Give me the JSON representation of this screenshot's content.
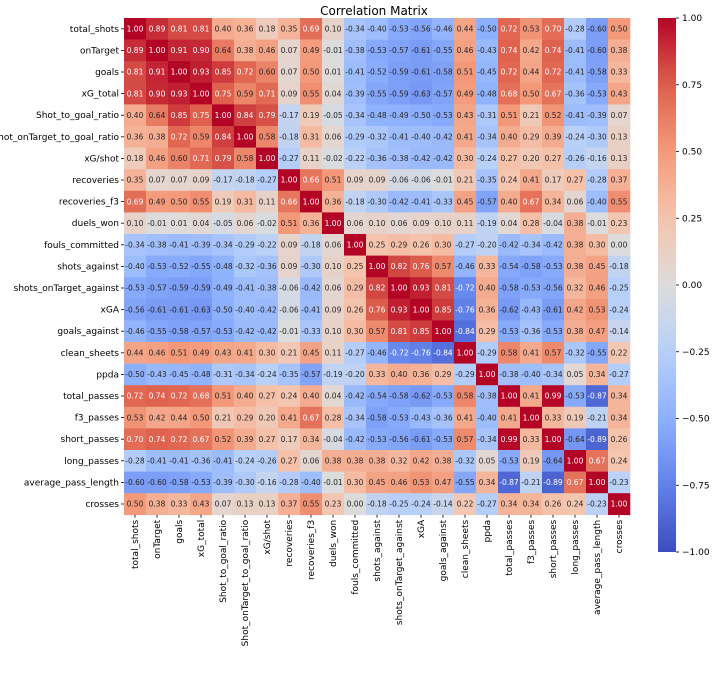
{
  "chart_data": {
    "type": "heatmap",
    "title": "Correlation Matrix",
    "labels": [
      "total_shots",
      "onTarget",
      "goals",
      "xG_total",
      "Shot_to_goal_ratio",
      "Shot_onTarget_to_goal_ratio",
      "xG/shot",
      "recoveries",
      "recoveries_f3",
      "duels_won",
      "fouls_committed",
      "shots_against",
      "shots_onTarget_against",
      "xGA",
      "goals_against",
      "clean_sheets",
      "ppda",
      "total_passes",
      "f3_passes",
      "short_passes",
      "long_passes",
      "average_pass_length",
      "crosses"
    ],
    "values": [
      [
        1.0,
        0.89,
        0.81,
        0.81,
        0.4,
        0.36,
        0.18,
        0.35,
        0.69,
        0.1,
        -0.34,
        -0.4,
        -0.53,
        -0.56,
        -0.46,
        0.44,
        -0.5,
        0.72,
        0.53,
        0.7,
        -0.28,
        -0.6,
        0.5
      ],
      [
        0.89,
        1.0,
        0.91,
        0.9,
        0.64,
        0.38,
        0.46,
        0.07,
        0.49,
        -0.01,
        -0.38,
        -0.53,
        -0.57,
        -0.61,
        -0.55,
        0.46,
        -0.43,
        0.74,
        0.42,
        0.74,
        -0.41,
        -0.6,
        0.38
      ],
      [
        0.81,
        0.91,
        1.0,
        0.93,
        0.85,
        0.72,
        0.6,
        0.07,
        0.5,
        0.01,
        -0.41,
        -0.52,
        -0.59,
        -0.61,
        -0.58,
        0.51,
        -0.45,
        0.72,
        0.44,
        0.72,
        -0.41,
        -0.58,
        0.33
      ],
      [
        0.81,
        0.9,
        0.93,
        1.0,
        0.75,
        0.59,
        0.71,
        0.09,
        0.55,
        0.04,
        -0.39,
        -0.55,
        -0.59,
        -0.63,
        -0.57,
        0.49,
        -0.48,
        0.68,
        0.5,
        0.67,
        -0.36,
        -0.53,
        0.43
      ],
      [
        0.4,
        0.64,
        0.85,
        0.75,
        1.0,
        0.84,
        0.79,
        -0.17,
        0.19,
        -0.05,
        -0.34,
        -0.48,
        -0.49,
        -0.5,
        -0.53,
        0.43,
        -0.31,
        0.51,
        0.21,
        0.52,
        -0.41,
        -0.39,
        0.07
      ],
      [
        0.36,
        0.38,
        0.72,
        0.59,
        0.84,
        1.0,
        0.58,
        -0.18,
        0.31,
        0.06,
        -0.29,
        -0.32,
        -0.41,
        -0.4,
        -0.42,
        0.41,
        -0.34,
        0.4,
        0.29,
        0.39,
        -0.24,
        -0.3,
        0.13
      ],
      [
        0.18,
        0.46,
        0.6,
        0.71,
        0.79,
        0.58,
        1.0,
        -0.27,
        0.11,
        -0.02,
        -0.22,
        -0.36,
        -0.38,
        -0.42,
        -0.42,
        0.3,
        -0.24,
        0.27,
        0.2,
        0.27,
        -0.26,
        -0.16,
        0.13
      ],
      [
        0.35,
        0.07,
        0.07,
        0.09,
        -0.17,
        -0.18,
        -0.27,
        1.0,
        0.66,
        0.51,
        0.09,
        0.09,
        -0.06,
        -0.06,
        -0.01,
        0.21,
        -0.35,
        0.24,
        0.41,
        0.17,
        0.27,
        -0.28,
        0.37
      ],
      [
        0.69,
        0.49,
        0.5,
        0.55,
        0.19,
        0.31,
        0.11,
        0.66,
        1.0,
        0.36,
        -0.18,
        -0.3,
        -0.42,
        -0.41,
        -0.33,
        0.45,
        -0.57,
        0.4,
        0.67,
        0.34,
        0.06,
        -0.4,
        0.55
      ],
      [
        0.1,
        -0.01,
        0.01,
        0.04,
        -0.05,
        0.06,
        -0.02,
        0.51,
        0.36,
        1.0,
        0.06,
        0.1,
        0.06,
        0.09,
        0.1,
        0.11,
        -0.19,
        0.04,
        0.28,
        -0.04,
        0.38,
        -0.01,
        0.23
      ],
      [
        -0.34,
        -0.38,
        -0.41,
        -0.39,
        -0.34,
        -0.29,
        -0.22,
        0.09,
        -0.18,
        0.06,
        1.0,
        0.25,
        0.29,
        0.26,
        0.3,
        -0.27,
        -0.2,
        -0.42,
        -0.34,
        -0.42,
        0.38,
        0.3,
        -0.0
      ],
      [
        -0.4,
        -0.53,
        -0.52,
        -0.55,
        -0.48,
        -0.32,
        -0.36,
        0.09,
        -0.3,
        0.1,
        0.25,
        1.0,
        0.82,
        0.76,
        0.57,
        -0.46,
        0.33,
        -0.54,
        -0.58,
        -0.53,
        0.38,
        0.45,
        -0.18
      ],
      [
        -0.53,
        -0.57,
        -0.59,
        -0.59,
        -0.49,
        -0.41,
        -0.38,
        -0.06,
        -0.42,
        0.06,
        0.29,
        0.82,
        1.0,
        0.93,
        0.81,
        -0.72,
        0.4,
        -0.58,
        -0.53,
        -0.56,
        0.32,
        0.46,
        -0.25
      ],
      [
        -0.56,
        -0.61,
        -0.61,
        -0.63,
        -0.5,
        -0.4,
        -0.42,
        -0.06,
        -0.41,
        0.09,
        0.26,
        0.76,
        0.93,
        1.0,
        0.85,
        -0.76,
        0.36,
        -0.62,
        -0.43,
        -0.61,
        0.42,
        0.53,
        -0.24
      ],
      [
        -0.46,
        -0.55,
        -0.58,
        -0.57,
        -0.53,
        -0.42,
        -0.42,
        -0.01,
        -0.33,
        0.1,
        0.3,
        0.57,
        0.81,
        0.85,
        1.0,
        -0.84,
        0.29,
        -0.53,
        -0.36,
        -0.53,
        0.38,
        0.47,
        -0.14
      ],
      [
        0.44,
        0.46,
        0.51,
        0.49,
        0.43,
        0.41,
        0.3,
        0.21,
        0.45,
        0.11,
        -0.27,
        -0.46,
        -0.72,
        -0.76,
        -0.84,
        1.0,
        -0.29,
        0.58,
        0.41,
        0.57,
        -0.32,
        -0.55,
        0.22
      ],
      [
        -0.5,
        -0.43,
        -0.45,
        -0.48,
        -0.31,
        -0.34,
        -0.24,
        -0.35,
        -0.57,
        -0.19,
        -0.2,
        0.33,
        0.4,
        0.36,
        0.29,
        -0.29,
        1.0,
        -0.38,
        -0.4,
        -0.34,
        0.05,
        0.34,
        -0.27
      ],
      [
        0.72,
        0.74,
        0.72,
        0.68,
        0.51,
        0.4,
        0.27,
        0.24,
        0.4,
        0.04,
        -0.42,
        -0.54,
        -0.58,
        -0.62,
        -0.53,
        0.58,
        -0.38,
        1.0,
        0.41,
        0.99,
        -0.53,
        -0.87,
        0.34
      ],
      [
        0.53,
        0.42,
        0.44,
        0.5,
        0.21,
        0.29,
        0.2,
        0.41,
        0.67,
        0.28,
        -0.34,
        -0.58,
        -0.53,
        -0.43,
        -0.36,
        0.41,
        -0.4,
        0.41,
        1.0,
        0.33,
        0.19,
        -0.21,
        0.34
      ],
      [
        0.7,
        0.74,
        0.72,
        0.67,
        0.52,
        0.39,
        0.27,
        0.17,
        0.34,
        -0.04,
        -0.42,
        -0.53,
        -0.56,
        -0.61,
        -0.53,
        0.57,
        -0.34,
        0.99,
        0.33,
        1.0,
        -0.64,
        -0.89,
        0.26
      ],
      [
        -0.28,
        -0.41,
        -0.41,
        -0.36,
        -0.41,
        -0.24,
        -0.26,
        0.27,
        0.06,
        0.38,
        0.38,
        0.38,
        0.32,
        0.42,
        0.38,
        -0.32,
        0.05,
        -0.53,
        0.19,
        -0.64,
        1.0,
        0.67,
        0.24
      ],
      [
        -0.6,
        -0.6,
        -0.58,
        -0.53,
        -0.39,
        -0.3,
        -0.16,
        -0.28,
        -0.4,
        -0.01,
        0.3,
        0.45,
        0.46,
        0.53,
        0.47,
        -0.55,
        0.34,
        -0.87,
        -0.21,
        -0.89,
        0.67,
        1.0,
        -0.23
      ],
      [
        0.5,
        0.38,
        0.33,
        0.43,
        0.07,
        0.13,
        0.13,
        0.37,
        0.55,
        0.23,
        -0.0,
        -0.18,
        -0.25,
        -0.24,
        -0.14,
        0.22,
        -0.27,
        0.34,
        0.34,
        0.26,
        0.24,
        -0.23,
        1.0
      ]
    ],
    "vmin": -1.0,
    "vmax": 1.0,
    "colormap": "coolwarm",
    "colorbar_ticks": [
      1.0,
      0.75,
      0.5,
      0.25,
      0.0,
      -0.25,
      -0.5,
      -0.75,
      -1.0
    ],
    "annotations": true,
    "value_format": "2 decimals"
  }
}
